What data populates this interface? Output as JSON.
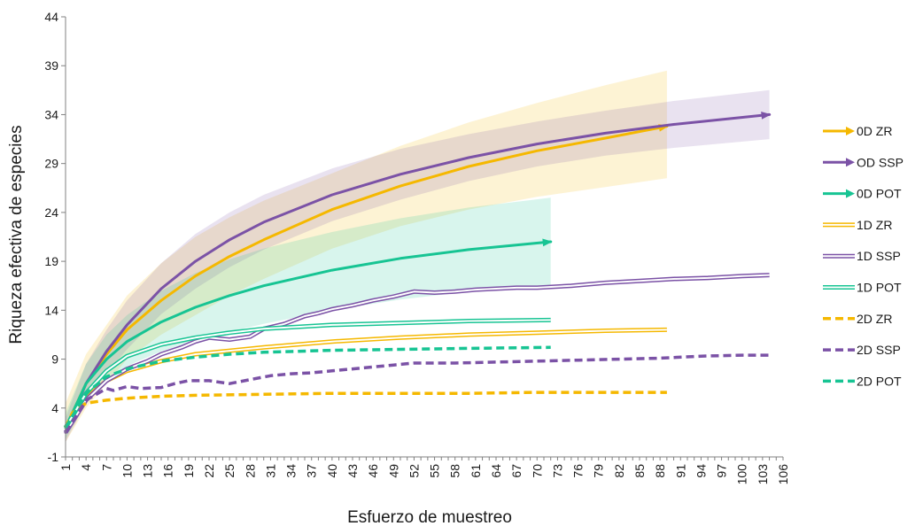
{
  "chart_data": {
    "type": "line",
    "xlabel": "Esfuerzo de muestreo",
    "ylabel": "Riqueza efectiva de especies",
    "ylim": [
      -1,
      44
    ],
    "xlim": [
      1,
      106
    ],
    "y_ticks": [
      -1,
      4,
      9,
      14,
      19,
      24,
      29,
      34,
      39,
      44
    ],
    "x_ticks": [
      1,
      4,
      7,
      10,
      13,
      16,
      19,
      22,
      25,
      28,
      31,
      34,
      37,
      40,
      43,
      46,
      49,
      52,
      55,
      58,
      61,
      64,
      67,
      70,
      73,
      76,
      79,
      82,
      85,
      88,
      91,
      94,
      97,
      100,
      103,
      106
    ],
    "grid": false,
    "legend_position": "right",
    "colors": {
      "ZR": "#f5b800",
      "SSP": "#7b52a6",
      "POT": "#17c493"
    },
    "series": [
      {
        "name": "0D ZR",
        "style": "arrow",
        "color": "#f5b800",
        "x": [
          1,
          4,
          7,
          10,
          15,
          20,
          25,
          30,
          40,
          50,
          60,
          70,
          80,
          89
        ],
        "y": [
          2.0,
          6.5,
          9.5,
          12.0,
          15.0,
          17.5,
          19.5,
          21.2,
          24.3,
          26.7,
          28.7,
          30.3,
          31.6,
          32.8
        ],
        "band_upper": [
          4.5,
          9.5,
          12.5,
          15.5,
          18.8,
          21.5,
          23.5,
          25.2,
          28.0,
          30.8,
          33.2,
          35.2,
          37.0,
          38.5
        ],
        "band_lower": [
          0.5,
          4.0,
          6.5,
          9.0,
          11.5,
          13.5,
          15.5,
          17.2,
          20.3,
          22.6,
          24.3,
          25.6,
          26.6,
          27.5
        ]
      },
      {
        "name": "OD SSP",
        "style": "arrow",
        "color": "#7b52a6",
        "x": [
          1,
          4,
          7,
          10,
          15,
          20,
          25,
          30,
          40,
          50,
          60,
          70,
          80,
          90,
          104
        ],
        "y": [
          1.5,
          6.5,
          9.8,
          12.5,
          16.2,
          19.0,
          21.2,
          23.0,
          25.8,
          27.9,
          29.6,
          31.0,
          32.1,
          33.0,
          34.0
        ],
        "band_upper": [
          3.0,
          8.5,
          12.0,
          15.0,
          18.8,
          21.8,
          24.0,
          25.8,
          28.5,
          30.5,
          32.0,
          33.3,
          34.4,
          35.4,
          36.5
        ],
        "band_lower": [
          0.5,
          4.5,
          7.6,
          10.0,
          13.6,
          16.2,
          18.4,
          20.2,
          23.1,
          25.3,
          27.2,
          28.7,
          29.8,
          30.6,
          31.5
        ]
      },
      {
        "name": "0D POT",
        "style": "arrow",
        "color": "#17c493",
        "x": [
          1,
          4,
          7,
          10,
          15,
          20,
          25,
          30,
          40,
          50,
          60,
          72
        ],
        "y": [
          2.0,
          6.5,
          9.0,
          10.8,
          12.8,
          14.3,
          15.5,
          16.5,
          18.1,
          19.3,
          20.2,
          21.0
        ],
        "band_upper": [
          3.5,
          8.5,
          11.5,
          13.5,
          16.0,
          17.8,
          19.2,
          20.3,
          22.0,
          23.4,
          24.5,
          25.5
        ],
        "band_lower": [
          0.8,
          4.5,
          6.8,
          8.3,
          9.8,
          10.9,
          11.8,
          12.6,
          14.0,
          15.1,
          15.9,
          16.5
        ]
      },
      {
        "name": "1D ZR",
        "style": "double",
        "color": "#f5b800",
        "x": [
          1,
          4,
          7,
          10,
          15,
          20,
          30,
          40,
          50,
          60,
          70,
          80,
          89
        ],
        "y": [
          2.0,
          5.0,
          6.8,
          7.8,
          8.8,
          9.5,
          10.2,
          10.8,
          11.2,
          11.5,
          11.7,
          11.9,
          12.0
        ]
      },
      {
        "name": "1D SSP",
        "style": "double",
        "color": "#7b52a6",
        "x": [
          1,
          4,
          7,
          10,
          13,
          15,
          18,
          20,
          22,
          25,
          28,
          30,
          33,
          36,
          38,
          40,
          43,
          46,
          49,
          52,
          55,
          58,
          61,
          64,
          67,
          70,
          75,
          80,
          85,
          90,
          95,
          100,
          104
        ],
        "y": [
          1.5,
          4.8,
          6.8,
          8.0,
          8.8,
          9.5,
          10.2,
          10.8,
          11.2,
          11.0,
          11.3,
          12.1,
          12.6,
          13.4,
          13.7,
          14.1,
          14.5,
          15.0,
          15.4,
          15.9,
          15.8,
          15.9,
          16.1,
          16.2,
          16.3,
          16.3,
          16.5,
          16.8,
          17.0,
          17.2,
          17.3,
          17.5,
          17.6
        ]
      },
      {
        "name": "1D POT",
        "style": "double",
        "color": "#17c493",
        "x": [
          1,
          4,
          7,
          10,
          15,
          20,
          25,
          30,
          35,
          40,
          50,
          60,
          72
        ],
        "y": [
          2.0,
          5.5,
          7.8,
          9.3,
          10.5,
          11.2,
          11.7,
          12.1,
          12.3,
          12.5,
          12.7,
          12.9,
          13.0
        ]
      },
      {
        "name": "2D ZR",
        "style": "dashed",
        "color": "#f5b800",
        "x": [
          1,
          2,
          4,
          7,
          10,
          15,
          20,
          30,
          40,
          50,
          60,
          70,
          80,
          89
        ],
        "y": [
          2.0,
          3.5,
          4.5,
          4.8,
          5.0,
          5.2,
          5.3,
          5.4,
          5.5,
          5.5,
          5.5,
          5.6,
          5.6,
          5.6
        ]
      },
      {
        "name": "2D SSP",
        "style": "dashed",
        "color": "#7b52a6",
        "x": [
          1,
          4,
          7,
          8,
          10,
          12,
          15,
          17,
          19,
          22,
          25,
          28,
          31,
          34,
          37,
          40,
          43,
          46,
          49,
          52,
          58,
          64,
          70,
          76,
          82,
          88,
          94,
          100,
          104
        ],
        "y": [
          1.5,
          4.8,
          6.0,
          5.8,
          6.2,
          6.0,
          6.1,
          6.5,
          6.8,
          6.8,
          6.5,
          6.9,
          7.3,
          7.5,
          7.6,
          7.8,
          8.0,
          8.2,
          8.4,
          8.6,
          8.6,
          8.7,
          8.8,
          8.9,
          9.0,
          9.1,
          9.3,
          9.4,
          9.4
        ]
      },
      {
        "name": "2D POT",
        "style": "dashed",
        "color": "#17c493",
        "x": [
          1,
          4,
          7,
          10,
          15,
          20,
          25,
          30,
          35,
          40,
          50,
          60,
          72
        ],
        "y": [
          2.0,
          5.5,
          7.2,
          8.0,
          8.8,
          9.2,
          9.5,
          9.7,
          9.8,
          9.9,
          10.0,
          10.1,
          10.2
        ]
      }
    ]
  }
}
